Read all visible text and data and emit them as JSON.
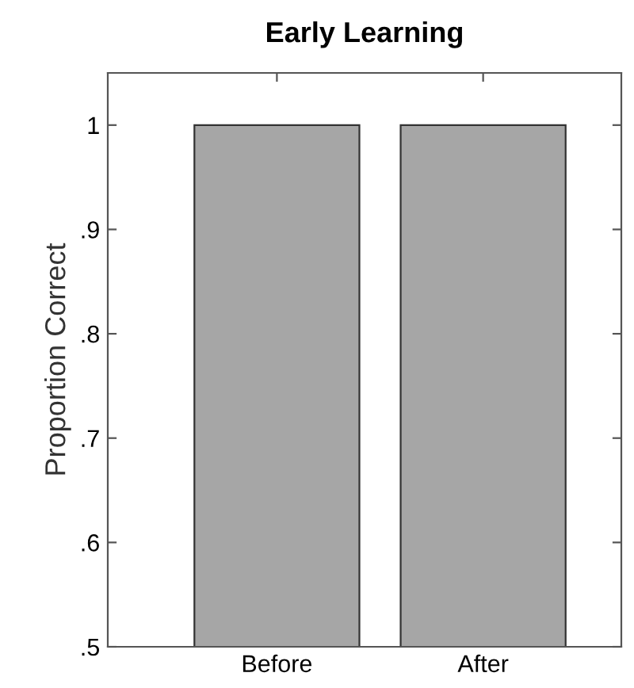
{
  "chart_data": {
    "type": "bar",
    "title": "Early Learning",
    "ylabel": "Proportion Correct",
    "categories": [
      "Before",
      "After"
    ],
    "values": [
      1,
      1
    ],
    "color": "#a6a6a6",
    "ylim": [
      0.5,
      1.05
    ],
    "yticks": [
      {
        "value": 0.5,
        "label": ".5"
      },
      {
        "value": 0.6,
        "label": ".6"
      },
      {
        "value": 0.7,
        "label": ".7"
      },
      {
        "value": 0.8,
        "label": ".8"
      },
      {
        "value": 0.9,
        "label": ".9"
      },
      1
    ],
    "grid": false
  }
}
